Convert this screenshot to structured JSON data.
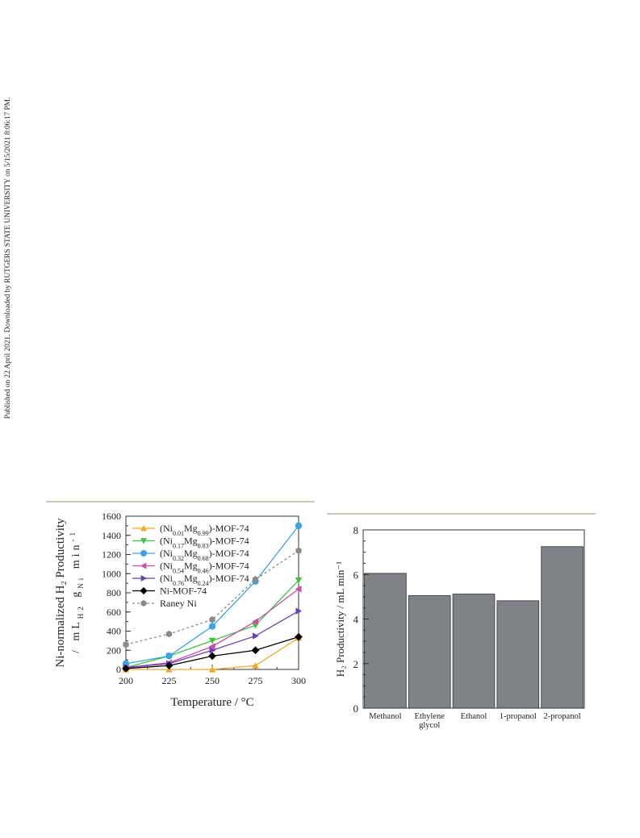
{
  "side_note": "Published on 22 April 2021. Downloaded by RUTGERS STATE UNIVERSITY on 5/15/2021 8:06:17 PM.",
  "chart_data": [
    {
      "type": "line",
      "xlabel": "Temperature / °C",
      "ylabel_line1": "Ni-normalized H₂ Productivity",
      "ylabel_line2": "/ mL_H2 g_Ni⁻¹ min⁻¹",
      "xlim": [
        200,
        300
      ],
      "ylim": [
        0,
        1600
      ],
      "x_ticks": [
        200,
        225,
        250,
        275,
        300
      ],
      "y_ticks": [
        0,
        200,
        400,
        600,
        800,
        1000,
        1200,
        1400,
        1600
      ],
      "legend_position": "top-left",
      "grid": false,
      "series": [
        {
          "name": "(Ni0.01Mg0.99)-MOF-74",
          "label_parts": [
            "(Ni",
            "0.01",
            "Mg",
            "0.99",
            ")-MOF-74"
          ],
          "color": "#f5a623",
          "marker": "triangle-up",
          "dash": false,
          "x": [
            200,
            225,
            250,
            275,
            300
          ],
          "y": [
            0,
            0,
            0,
            40,
            330
          ]
        },
        {
          "name": "(Ni0.17Mg0.83)-MOF-74",
          "label_parts": [
            "(Ni",
            "0.17",
            "Mg",
            "0.83",
            ")-MOF-74"
          ],
          "color": "#3cc43c",
          "marker": "triangle-down",
          "dash": false,
          "x": [
            200,
            225,
            250,
            275,
            300
          ],
          "y": [
            20,
            140,
            300,
            460,
            930
          ]
        },
        {
          "name": "(Ni0.32Mg0.68)-MOF-74",
          "label_parts": [
            "(Ni",
            "0.32",
            "Mg",
            "0.68",
            ")-MOF-74"
          ],
          "color": "#3aa3e8",
          "marker": "circle",
          "dash": false,
          "x": [
            200,
            225,
            250,
            275,
            300
          ],
          "y": [
            60,
            140,
            450,
            920,
            1500
          ]
        },
        {
          "name": "(Ni0.54Mg0.46)-MOF-74",
          "label_parts": [
            "(Ni",
            "0.54",
            "Mg",
            "0.46",
            ")-MOF-74"
          ],
          "color": "#d04aa8",
          "marker": "triangle-left",
          "dash": false,
          "x": [
            200,
            225,
            250,
            275,
            300
          ],
          "y": [
            20,
            70,
            240,
            500,
            840
          ]
        },
        {
          "name": "(Ni0.76Mg0.24)-MOF-74",
          "label_parts": [
            "(Ni",
            "0.76",
            "Mg",
            "0.24",
            ")-MOF-74"
          ],
          "color": "#6a3fb8",
          "marker": "triangle-right",
          "dash": false,
          "x": [
            200,
            225,
            250,
            275,
            300
          ],
          "y": [
            20,
            60,
            200,
            350,
            610
          ]
        },
        {
          "name": "Ni-MOF-74",
          "label_parts": [
            "Ni-MOF-74"
          ],
          "color": "#000000",
          "marker": "diamond",
          "dash": false,
          "x": [
            200,
            225,
            250,
            275,
            300
          ],
          "y": [
            10,
            40,
            140,
            200,
            340
          ]
        },
        {
          "name": "Raney Ni",
          "label_parts": [
            "Raney Ni"
          ],
          "color": "#8a8a8a",
          "marker": "hexagon",
          "dash": true,
          "x": [
            200,
            225,
            250,
            275,
            300
          ],
          "y": [
            260,
            370,
            520,
            940,
            1240
          ]
        }
      ]
    },
    {
      "type": "bar",
      "ylabel": "H₂ Productivity / mL min⁻¹",
      "categories": [
        "Methanol",
        "Ethylene glycol",
        "Ethanol",
        "1-propanol",
        "2-propanol"
      ],
      "category_lines": [
        [
          "Methanol"
        ],
        [
          "Ethylene",
          "glycol"
        ],
        [
          "Ethanol"
        ],
        [
          "1-propanol"
        ],
        [
          "2-propanol"
        ]
      ],
      "values": [
        6.05,
        5.05,
        5.12,
        4.82,
        7.25
      ],
      "ylim": [
        0,
        8
      ],
      "y_ticks": [
        0,
        2,
        4,
        6,
        8
      ],
      "bar_color": "#7f8387"
    }
  ]
}
